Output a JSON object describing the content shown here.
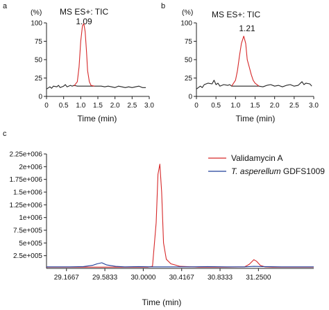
{
  "colors": {
    "red": "#d62728",
    "blue": "#1f3d99",
    "black": "#222222"
  },
  "chart_data": [
    {
      "panel": "a",
      "type": "line",
      "annotation": "MS ES+: TIC",
      "peak_label": "1.09",
      "unit_label": "(%)",
      "xlabel": "Time (min)",
      "xlim": [
        0,
        3.0
      ],
      "ylim": [
        0,
        100
      ],
      "xticks": [
        0,
        0.5,
        1.0,
        1.5,
        2.0,
        2.5,
        3.0
      ],
      "xtick_labels": [
        "0",
        "0.5",
        "1.0",
        "1.5",
        "2.0",
        "2.5",
        "3.0"
      ],
      "yticks": [
        0,
        25,
        50,
        75,
        100
      ],
      "series": [
        {
          "color": "black",
          "x": [
            0.0,
            0.1,
            0.15,
            0.2,
            0.3,
            0.35,
            0.4,
            0.5,
            0.55,
            0.6,
            0.7,
            0.75,
            0.8,
            0.9,
            1.0,
            1.1,
            1.2,
            1.3,
            1.4,
            1.5,
            1.6,
            1.7,
            1.8,
            1.9,
            2.0,
            2.1,
            2.2,
            2.3,
            2.4,
            2.5,
            2.6,
            2.7,
            2.8,
            2.9
          ],
          "y": [
            10,
            13,
            11,
            14,
            13,
            15,
            12,
            14,
            16,
            13,
            15,
            14,
            15,
            14,
            14,
            14,
            14,
            14,
            14,
            14,
            14,
            13,
            14,
            13,
            12,
            14,
            13,
            12,
            13,
            12,
            13,
            14,
            12,
            12
          ]
        },
        {
          "color": "red",
          "x": [
            0.8,
            0.9,
            0.95,
            1.0,
            1.05,
            1.09,
            1.13,
            1.17,
            1.2,
            1.25,
            1.3,
            1.4
          ],
          "y": [
            14,
            20,
            40,
            75,
            96,
            99,
            88,
            60,
            35,
            20,
            15,
            14
          ]
        }
      ]
    },
    {
      "panel": "b",
      "type": "line",
      "annotation": "MS ES+: TIC",
      "peak_label": "1.21",
      "unit_label": "(%)",
      "xlabel": "Time (min)",
      "xlim": [
        0,
        3.0
      ],
      "ylim": [
        0,
        100
      ],
      "xticks": [
        0,
        0.5,
        1.0,
        1.5,
        2.0,
        2.5,
        3.0
      ],
      "xtick_labels": [
        "0",
        "0.5",
        "1.0",
        "1.5",
        "2.0",
        "2.5",
        "3.0"
      ],
      "yticks": [
        0,
        25,
        50,
        75,
        100
      ],
      "series": [
        {
          "color": "black",
          "x": [
            0.0,
            0.1,
            0.15,
            0.2,
            0.3,
            0.4,
            0.45,
            0.5,
            0.55,
            0.6,
            0.7,
            0.8,
            0.85,
            0.9,
            1.0,
            1.6,
            1.7,
            1.8,
            1.9,
            2.0,
            2.1,
            2.2,
            2.3,
            2.4,
            2.5,
            2.6,
            2.7,
            2.75,
            2.8,
            2.9,
            2.95
          ],
          "y": [
            10,
            14,
            12,
            16,
            18,
            17,
            22,
            16,
            18,
            14,
            16,
            15,
            16,
            14,
            14,
            14,
            13,
            15,
            16,
            14,
            15,
            13,
            15,
            16,
            14,
            15,
            20,
            16,
            18,
            17,
            14
          ]
        },
        {
          "color": "red",
          "x": [
            0.9,
            1.0,
            1.05,
            1.1,
            1.15,
            1.21,
            1.26,
            1.3,
            1.35,
            1.4,
            1.45,
            1.5,
            1.6
          ],
          "y": [
            14,
            22,
            35,
            55,
            72,
            82,
            72,
            50,
            40,
            30,
            22,
            18,
            14
          ]
        }
      ]
    },
    {
      "panel": "c",
      "type": "line",
      "xlabel": "Time (min)",
      "xlim": [
        28.95,
        31.85
      ],
      "ylim": [
        0,
        2250000
      ],
      "xticks": [
        29.1667,
        29.5833,
        30.0,
        30.4167,
        30.8333,
        31.25
      ],
      "xtick_labels": [
        "29.1667",
        "29.5833",
        "30.0000",
        "30.4167",
        "30.8333",
        "31.2500"
      ],
      "yticks": [
        250000,
        500000,
        750000,
        1000000,
        1250000,
        1500000,
        1750000,
        2000000,
        2250000
      ],
      "ytick_labels": [
        "2.5e+005",
        "5e+005",
        "7.5e+005",
        "1e+006",
        "1.25e+006",
        "1.5e+006",
        "1.75e+006",
        "2e+006",
        "2.25e+006"
      ],
      "legend": [
        {
          "color": "red",
          "label": "Validamycin A"
        },
        {
          "color": "blue",
          "label_italic": "T. asperellum",
          "label_rest": " GDFS1009"
        }
      ],
      "series": [
        {
          "color": "red",
          "x": [
            28.95,
            29.4,
            29.8,
            30.05,
            30.1,
            30.14,
            30.16,
            30.18,
            30.2,
            30.22,
            30.25,
            30.3,
            30.4,
            30.6,
            30.9,
            31.1,
            31.15,
            31.2,
            31.23,
            31.27,
            31.32,
            31.4,
            31.6,
            31.85
          ],
          "y": [
            25000,
            25000,
            25000,
            25000,
            40000,
            900000,
            1850000,
            2050000,
            1500000,
            500000,
            180000,
            90000,
            40000,
            25000,
            25000,
            30000,
            80000,
            170000,
            140000,
            60000,
            30000,
            25000,
            25000,
            25000
          ]
        },
        {
          "color": "blue",
          "x": [
            28.95,
            29.2,
            29.35,
            29.45,
            29.5,
            29.55,
            29.6,
            29.7,
            29.8,
            29.95,
            30.1,
            30.2,
            30.3,
            30.5,
            30.7,
            30.9,
            31.1,
            31.2,
            31.3,
            31.5,
            31.7,
            31.85
          ],
          "y": [
            30000,
            30000,
            35000,
            60000,
            90000,
            110000,
            70000,
            40000,
            30000,
            35000,
            30000,
            30000,
            30000,
            30000,
            35000,
            30000,
            30000,
            40000,
            35000,
            30000,
            30000,
            30000
          ]
        }
      ]
    }
  ]
}
